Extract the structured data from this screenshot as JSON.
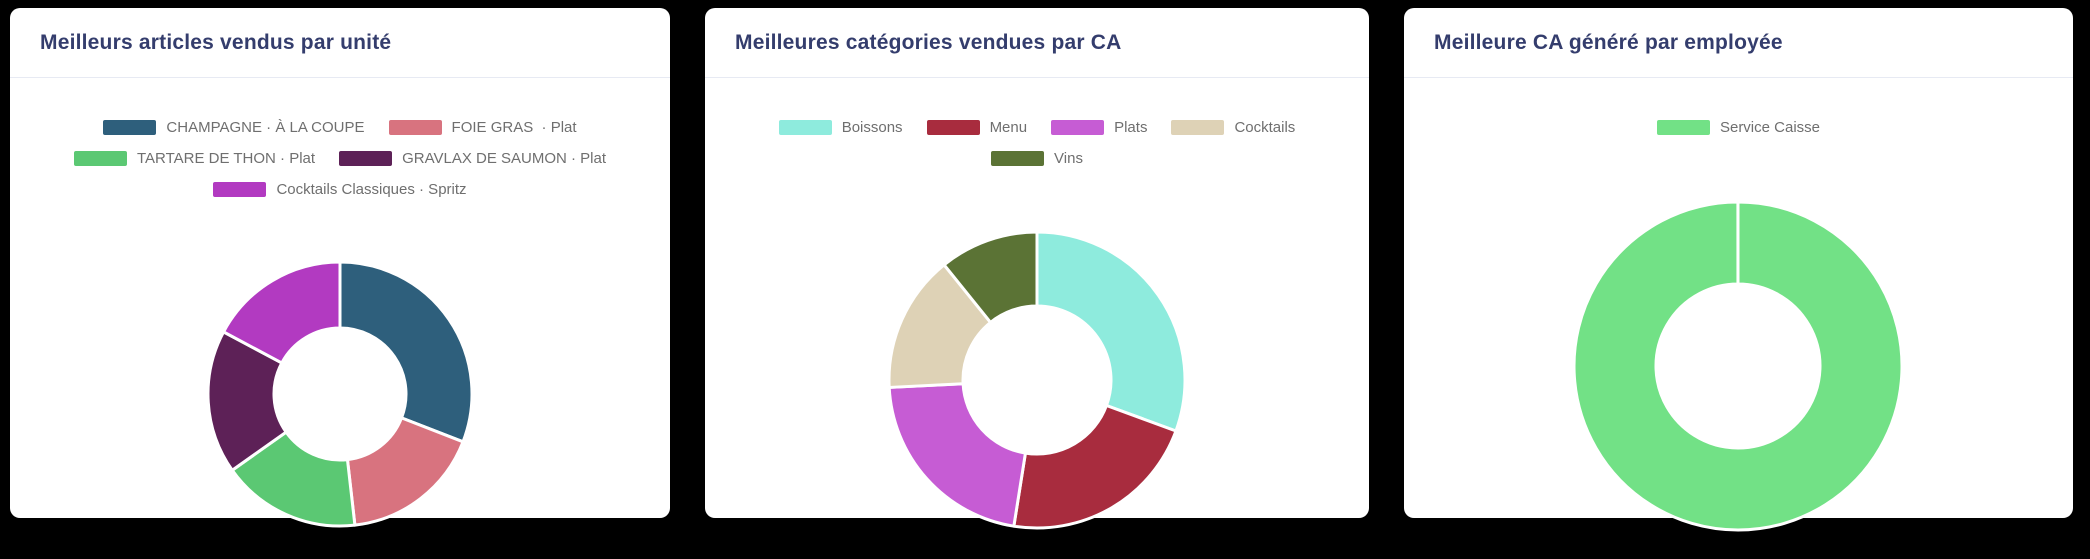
{
  "theme": {
    "page_background": "#000000",
    "card_background": "#ffffff",
    "title_text": "#343d6d",
    "legend_text": "#6f6f6f",
    "divider": "#e7eaf3",
    "segment_border": "#ffffff"
  },
  "cards": [
    {
      "title": "Meilleurs articles vendus par unité",
      "chart_data": {
        "type": "pie",
        "style": "donut",
        "cutout_ratio": 0.5,
        "legend_position": "top",
        "start_angle_deg": 0,
        "direction": "clockwise",
        "unit": "percent (estimated from arc angles)",
        "segments": [
          {
            "label": "CHAMPAGNE · À LA COUPE",
            "color": "#2e5f7c",
            "value": 30.9
          },
          {
            "label": "FOIE GRAS  · Plat",
            "color": "#d8737f",
            "value": 17.3
          },
          {
            "label": "TARTARE DE THON · Plat",
            "color": "#5bc873",
            "value": 17.0
          },
          {
            "label": "GRAVLAX DE SAUMON · Plat",
            "color": "#5d2157",
            "value": 17.6
          },
          {
            "label": "Cocktails Classiques · Spritz",
            "color": "#b23ac1",
            "value": 17.2
          }
        ]
      }
    },
    {
      "title": "Meilleures catégories vendues par CA",
      "chart_data": {
        "type": "pie",
        "style": "donut",
        "cutout_ratio": 0.5,
        "legend_position": "top",
        "start_angle_deg": 0,
        "direction": "clockwise",
        "unit": "percent (estimated from arc angles)",
        "segments": [
          {
            "label": "Boissons",
            "color": "#8eebdd",
            "value": 30.6
          },
          {
            "label": "Menu",
            "color": "#a82c3e",
            "value": 21.9
          },
          {
            "label": "Plats",
            "color": "#c65cd4",
            "value": 21.7
          },
          {
            "label": "Cocktails",
            "color": "#ded2b6",
            "value": 15.0
          },
          {
            "label": "Vins",
            "color": "#5b7335",
            "value": 10.8
          }
        ]
      }
    },
    {
      "title": "Meilleure CA généré par employée",
      "chart_data": {
        "type": "pie",
        "style": "donut",
        "cutout_ratio": 0.5,
        "legend_position": "top",
        "start_angle_deg": 0,
        "direction": "clockwise",
        "unit": "percent (estimated from arc angles)",
        "segments": [
          {
            "label": "Service Caisse",
            "color": "#72e186",
            "value": 100
          }
        ]
      }
    }
  ]
}
